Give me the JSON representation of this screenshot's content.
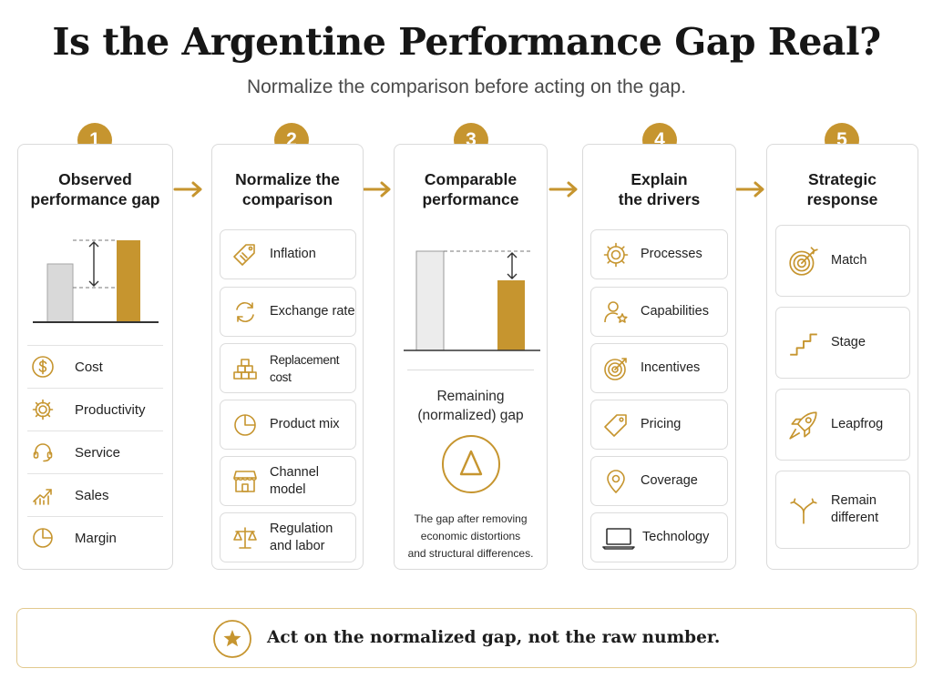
{
  "title": "Is the Argentine Performance Gap Real?",
  "subtitle": "Normalize the comparison before acting on the gap.",
  "accent_color": "#c6952f",
  "steps": [
    {
      "number": "1",
      "title_line1": "Observed",
      "title_line2": "performance gap",
      "items": [
        {
          "label": "Cost",
          "icon": "dollar-icon"
        },
        {
          "label": "Productivity",
          "icon": "gear-icon"
        },
        {
          "label": "Service",
          "icon": "headset-icon"
        },
        {
          "label": "Sales",
          "icon": "trend-up-icon"
        },
        {
          "label": "Margin",
          "icon": "pie-chart-icon"
        }
      ]
    },
    {
      "number": "2",
      "title_line1": "Normalize the",
      "title_line2": "comparison",
      "items": [
        {
          "label": "Inflation",
          "icon": "tag-icon"
        },
        {
          "label": "Exchange rate",
          "icon": "exchange-icon"
        },
        {
          "label": "Replacement cost",
          "icon": "bricks-icon"
        },
        {
          "label": "Product mix",
          "icon": "pie-chart-icon"
        },
        {
          "label": "Channel model",
          "icon": "storefront-icon"
        },
        {
          "label_line1": "Regulation",
          "label_line2": "and labor",
          "icon": "scales-icon"
        }
      ]
    },
    {
      "number": "3",
      "title_line1": "Comparable",
      "title_line2": "performance",
      "remaining_line1": "Remaining",
      "remaining_line2": "(normalized) gap",
      "delta_symbol": "Δ",
      "desc_line1": "The gap after removing",
      "desc_line2": "economic distortions",
      "desc_line3": "and structural differences."
    },
    {
      "number": "4",
      "title_line1": "Explain",
      "title_line2": "the drivers",
      "items": [
        {
          "label": "Processes",
          "icon": "gear-icon"
        },
        {
          "label": "Capabilities",
          "icon": "person-star-icon"
        },
        {
          "label": "Incentives",
          "icon": "target-icon"
        },
        {
          "label": "Pricing",
          "icon": "price-tag-icon"
        },
        {
          "label": "Coverage",
          "icon": "location-pin-icon"
        },
        {
          "label": "Technology",
          "icon": "laptop-icon"
        }
      ]
    },
    {
      "number": "5",
      "title_line1": "Strategic",
      "title_line2": "response",
      "items": [
        {
          "label": "Match",
          "icon": "target-arrow-icon"
        },
        {
          "label": "Stage",
          "icon": "stairs-icon"
        },
        {
          "label": "Leapfrog",
          "icon": "rocket-icon"
        },
        {
          "label_line1": "Remain",
          "label_line2": "different",
          "icon": "split-arrow-icon"
        }
      ]
    }
  ],
  "footer": {
    "text": "Act on the normalized gap, not the raw number.",
    "icon": "star-icon"
  }
}
